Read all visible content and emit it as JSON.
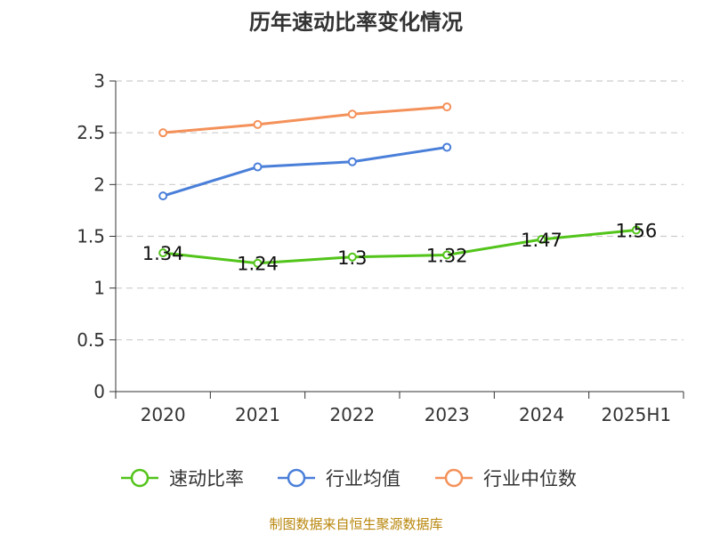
{
  "chart_data": {
    "type": "line",
    "title": "历年速动比率变化情况",
    "categories": [
      "2020",
      "2021",
      "2022",
      "2023",
      "2024",
      "2025H1"
    ],
    "ylim": [
      0,
      3
    ],
    "yticks": [
      "0",
      "0.5",
      "1",
      "1.5",
      "2",
      "2.5",
      "3"
    ],
    "grid": true,
    "legend_position": "bottom",
    "series": [
      {
        "name": "速动比率",
        "color": "#52c41a",
        "values": [
          1.34,
          1.24,
          1.3,
          1.32,
          1.47,
          1.56
        ],
        "labels": [
          "1.34",
          "1.24",
          "1.3",
          "1.32",
          "1.47",
          "1.56"
        ]
      },
      {
        "name": "行业均值",
        "color": "#4a7fd9",
        "values": [
          1.89,
          2.17,
          2.22,
          2.36,
          null,
          null
        ]
      },
      {
        "name": "行业中位数",
        "color": "#f4915a",
        "values": [
          2.5,
          2.58,
          2.68,
          2.75,
          null,
          null
        ]
      }
    ]
  },
  "footer": {
    "source": "制图数据来自恒生聚源数据库"
  }
}
